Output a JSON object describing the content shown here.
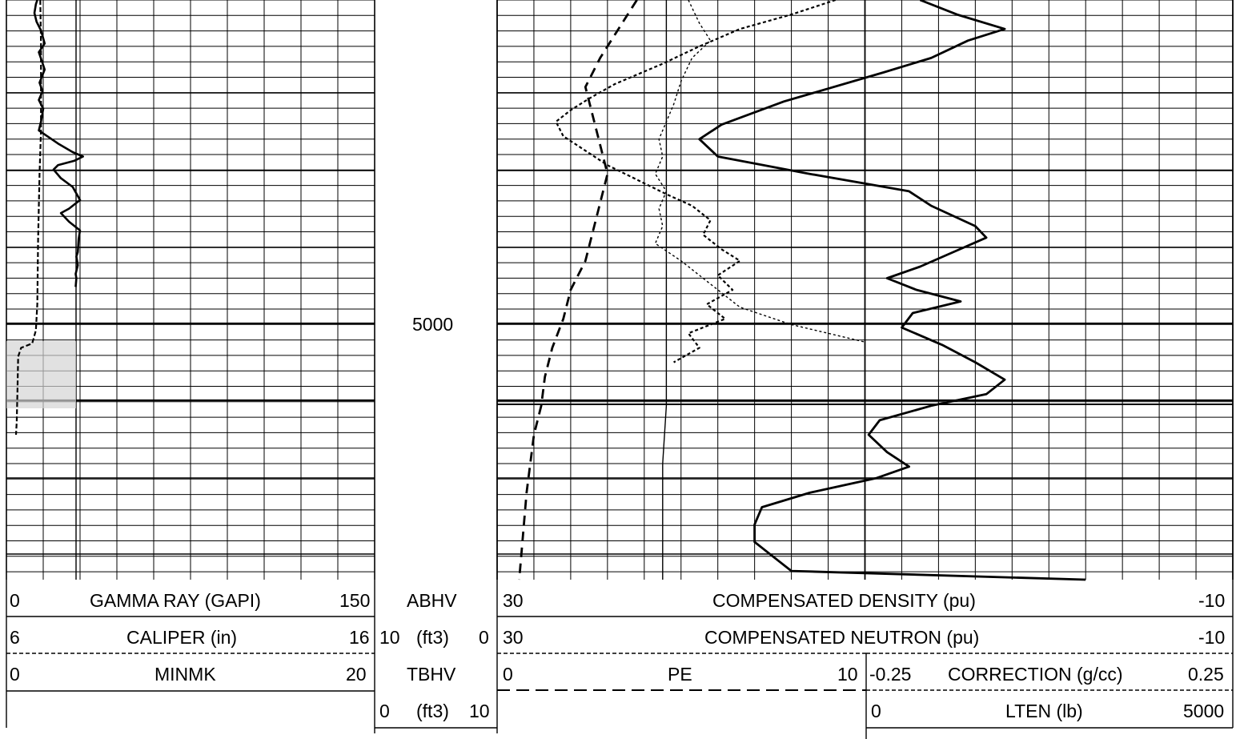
{
  "chart_data": {
    "type": "line",
    "title": "",
    "depth_label": "5000",
    "tracks": [
      {
        "name": "track-1",
        "grid": "linear",
        "curves": [
          {
            "id": "gamma-ray",
            "label": "GAMMA RAY (GAPI)",
            "min": "0",
            "max": "150",
            "style": "solid"
          },
          {
            "id": "caliper",
            "label": "CALIPER (in)",
            "min": "6",
            "max": "16",
            "style": "dashed"
          },
          {
            "id": "minmk",
            "label": "MINMK",
            "min": "0",
            "max": "20",
            "style": "none"
          }
        ]
      },
      {
        "name": "depth-track",
        "curves": [
          {
            "id": "abhv",
            "label": "ABHV",
            "scale": "(ft3)",
            "min": "10",
            "max": "0"
          },
          {
            "id": "tbhv",
            "label": "TBHV",
            "scale": "(ft3)",
            "min": "0",
            "max": "10"
          }
        ]
      },
      {
        "name": "track-2-3",
        "grid": "linear",
        "curves": [
          {
            "id": "compensated-density",
            "label": "COMPENSATED DENSITY (pu)",
            "min": "30",
            "max": "-10",
            "style": "solid"
          },
          {
            "id": "compensated-neutron",
            "label": "COMPENSATED NEUTRON (pu)",
            "min": "30",
            "max": "-10",
            "style": "dotted"
          },
          {
            "id": "pe",
            "label": "PE",
            "min": "0",
            "max": "10",
            "style": "long-dash"
          },
          {
            "id": "correction",
            "label": "CORRECTION (g/cc)",
            "min": "-0.25",
            "max": "0.25",
            "style": "fine-dotted"
          },
          {
            "id": "lten",
            "label": "LTEN (lb)",
            "min": "0",
            "max": "5000",
            "style": "thin-solid"
          }
        ]
      }
    ],
    "series": [
      {
        "id": "gamma-ray",
        "points": [
          [
            0.42,
            0
          ],
          [
            0.4,
            0.01
          ],
          [
            0.38,
            0.03
          ],
          [
            0.41,
            0.05
          ],
          [
            0.47,
            0.07
          ],
          [
            0.52,
            0.1
          ],
          [
            0.44,
            0.12
          ],
          [
            0.48,
            0.14
          ],
          [
            0.52,
            0.16
          ],
          [
            0.45,
            0.19
          ],
          [
            0.49,
            0.21
          ],
          [
            0.44,
            0.23
          ],
          [
            0.5,
            0.25
          ],
          [
            0.47,
            0.28
          ],
          [
            0.44,
            0.3
          ],
          [
            0.7,
            0.33
          ],
          [
            0.9,
            0.35
          ],
          [
            1.04,
            0.36
          ],
          [
            0.92,
            0.37
          ],
          [
            0.7,
            0.38
          ],
          [
            0.64,
            0.39
          ],
          [
            0.74,
            0.41
          ],
          [
            0.9,
            0.43
          ],
          [
            1.0,
            0.46
          ],
          [
            0.85,
            0.48
          ],
          [
            0.74,
            0.49
          ],
          [
            0.85,
            0.51
          ],
          [
            1.0,
            0.53
          ],
          [
            0.98,
            0.55
          ],
          [
            0.97,
            0.58
          ],
          [
            0.95,
            0.59
          ],
          [
            0.97,
            0.61
          ],
          [
            0.94,
            0.63
          ],
          [
            0.95,
            0.64
          ],
          [
            0.94,
            0.66
          ]
        ]
      },
      {
        "id": "caliper",
        "points": [
          [
            0.46,
            0
          ],
          [
            0.47,
            0.1
          ],
          [
            0.47,
            0.3
          ],
          [
            0.45,
            0.4
          ],
          [
            0.43,
            0.55
          ],
          [
            0.42,
            0.7
          ],
          [
            0.4,
            0.76
          ],
          [
            0.35,
            0.79
          ],
          [
            0.2,
            0.8
          ],
          [
            0.16,
            0.82
          ],
          [
            0.15,
            0.9
          ],
          [
            0.14,
            0.97
          ],
          [
            0.13,
            1.0
          ]
        ]
      },
      {
        "id": "compensated-density",
        "points": [
          [
            1.15,
            0
          ],
          [
            1.25,
            0.05
          ],
          [
            1.38,
            0.1
          ],
          [
            1.28,
            0.14
          ],
          [
            1.18,
            0.2
          ],
          [
            1.05,
            0.25
          ],
          [
            0.78,
            0.35
          ],
          [
            0.61,
            0.43
          ],
          [
            0.55,
            0.48
          ],
          [
            0.6,
            0.54
          ],
          [
            0.85,
            0.6
          ],
          [
            1.12,
            0.66
          ],
          [
            1.18,
            0.71
          ],
          [
            1.3,
            0.78
          ],
          [
            1.33,
            0.82
          ],
          [
            1.24,
            0.87
          ],
          [
            1.15,
            0.92
          ],
          [
            1.06,
            0.96
          ],
          [
            1.14,
            1.0
          ],
          [
            1.26,
            1.04
          ],
          [
            1.13,
            1.08
          ],
          [
            1.1,
            1.13
          ],
          [
            1.21,
            1.19
          ],
          [
            1.3,
            1.25
          ],
          [
            1.38,
            1.31
          ],
          [
            1.33,
            1.36
          ],
          [
            1.18,
            1.4
          ],
          [
            1.04,
            1.45
          ],
          [
            1.01,
            1.5
          ],
          [
            1.06,
            1.56
          ],
          [
            1.12,
            1.61
          ],
          [
            1.03,
            1.65
          ],
          [
            0.85,
            1.7
          ],
          [
            0.72,
            1.75
          ],
          [
            0.7,
            1.81
          ],
          [
            0.7,
            1.87
          ],
          [
            0.76,
            1.93
          ],
          [
            0.8,
            1.97
          ],
          [
            1.6,
            2.0
          ]
        ]
      },
      {
        "id": "compensated-neutron",
        "points": [
          [
            0.92,
            0
          ],
          [
            0.8,
            0.05
          ],
          [
            0.66,
            0.1
          ],
          [
            0.55,
            0.16
          ],
          [
            0.45,
            0.22
          ],
          [
            0.32,
            0.29
          ],
          [
            0.25,
            0.34
          ],
          [
            0.2,
            0.38
          ],
          [
            0.16,
            0.42
          ],
          [
            0.18,
            0.47
          ],
          [
            0.24,
            0.52
          ],
          [
            0.3,
            0.57
          ],
          [
            0.38,
            0.62
          ],
          [
            0.46,
            0.67
          ],
          [
            0.53,
            0.71
          ],
          [
            0.58,
            0.76
          ],
          [
            0.56,
            0.81
          ],
          [
            0.61,
            0.86
          ],
          [
            0.66,
            0.9
          ],
          [
            0.6,
            0.95
          ],
          [
            0.64,
            1.0
          ],
          [
            0.57,
            1.05
          ],
          [
            0.62,
            1.1
          ],
          [
            0.52,
            1.15
          ],
          [
            0.55,
            1.2
          ],
          [
            0.48,
            1.25
          ]
        ]
      },
      {
        "id": "pe",
        "points": [
          [
            0.38,
            0
          ],
          [
            0.33,
            0.1
          ],
          [
            0.28,
            0.2
          ],
          [
            0.24,
            0.3
          ],
          [
            0.26,
            0.4
          ],
          [
            0.28,
            0.5
          ],
          [
            0.3,
            0.6
          ],
          [
            0.28,
            0.7
          ],
          [
            0.26,
            0.8
          ],
          [
            0.24,
            0.9
          ],
          [
            0.2,
            1.0
          ],
          [
            0.18,
            1.1
          ],
          [
            0.15,
            1.2
          ],
          [
            0.13,
            1.3
          ],
          [
            0.12,
            1.4
          ],
          [
            0.1,
            1.5
          ],
          [
            0.09,
            1.6
          ],
          [
            0.08,
            1.7
          ],
          [
            0.07,
            1.85
          ],
          [
            0.06,
            2.0
          ]
        ]
      },
      {
        "id": "correction",
        "points": [
          [
            0.52,
            0
          ],
          [
            0.55,
            0.08
          ],
          [
            0.58,
            0.14
          ],
          [
            0.53,
            0.2
          ],
          [
            0.5,
            0.28
          ],
          [
            0.48,
            0.36
          ],
          [
            0.46,
            0.42
          ],
          [
            0.44,
            0.48
          ],
          [
            0.45,
            0.54
          ],
          [
            0.43,
            0.6
          ],
          [
            0.46,
            0.66
          ],
          [
            0.44,
            0.72
          ],
          [
            0.45,
            0.78
          ],
          [
            0.43,
            0.84
          ],
          [
            0.5,
            0.9
          ],
          [
            0.56,
            0.96
          ],
          [
            0.6,
            1.0
          ],
          [
            0.66,
            1.06
          ],
          [
            0.8,
            1.12
          ],
          [
            1.0,
            1.18
          ]
        ]
      },
      {
        "id": "lten",
        "points": [
          [
            0.46,
            0
          ],
          [
            0.46,
            0.2
          ],
          [
            0.46,
            0.4
          ],
          [
            0.46,
            0.6
          ],
          [
            0.46,
            0.8
          ],
          [
            0.46,
            1.0
          ],
          [
            0.46,
            1.2
          ],
          [
            0.46,
            1.4
          ],
          [
            0.45,
            1.6
          ],
          [
            0.45,
            1.8
          ],
          [
            0.45,
            2.0
          ]
        ]
      }
    ]
  }
}
